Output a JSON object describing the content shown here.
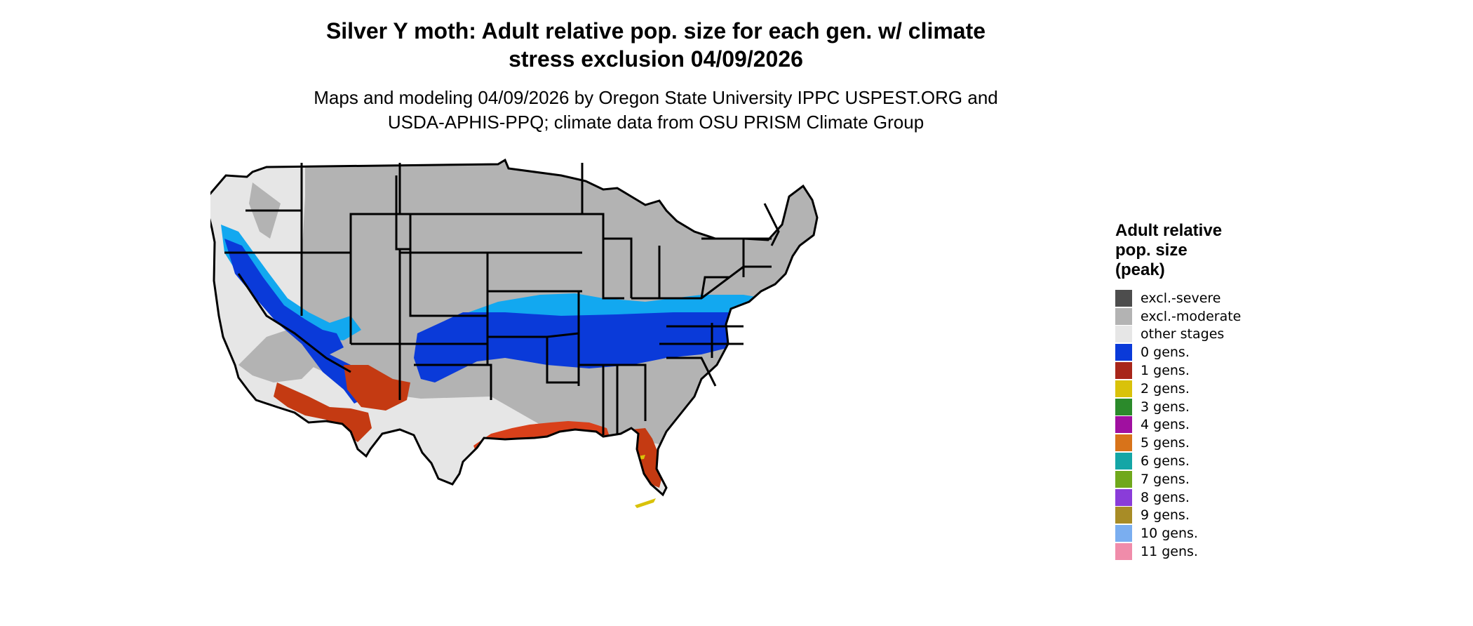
{
  "title_line1": "Silver Y moth: Adult relative pop. size for each gen. w/ climate",
  "title_line2": "stress exclusion 04/09/2026",
  "subtitle_line1": "Maps and modeling 04/09/2026 by Oregon State University IPPC USPEST.ORG and",
  "subtitle_line2": "USDA-APHIS-PPQ; climate data from OSU PRISM Climate Group",
  "legend": {
    "title_line1": "Adult relative",
    "title_line2": "pop. size",
    "title_line3": "(peak)",
    "items": [
      {
        "label": "excl.-severe",
        "color": "#4d4d4d"
      },
      {
        "label": "excl.-moderate",
        "color": "#b3b3b3"
      },
      {
        "label": "other stages",
        "color": "#e6e6e6"
      },
      {
        "label": "0 gens.",
        "color": "#0a3ad9"
      },
      {
        "label": "1 gens.",
        "color": "#a8261a"
      },
      {
        "label": "2 gens.",
        "color": "#d9c20a"
      },
      {
        "label": "3 gens.",
        "color": "#2b8a2b"
      },
      {
        "label": "4 gens.",
        "color": "#a010a0"
      },
      {
        "label": "5 gens.",
        "color": "#d8731a"
      },
      {
        "label": "6 gens.",
        "color": "#14a6a6"
      },
      {
        "label": "7 gens.",
        "color": "#70a81c"
      },
      {
        "label": "8 gens.",
        "color": "#8a3cd9"
      },
      {
        "label": "9 gens.",
        "color": "#a88c26"
      },
      {
        "label": "10 gens.",
        "color": "#7aaef0"
      },
      {
        "label": "11 gens.",
        "color": "#f08caa"
      }
    ]
  },
  "map_colors": {
    "other_stages": "#e6e6e6",
    "excl_moderate": "#b3b3b3",
    "excl_severe": "#4d4d4d",
    "zero_gens_dark": "#0a3ad9",
    "zero_gens_light": "#12a8f0",
    "one_gen": "#c43a12",
    "one_gen_bright": "#f0500f",
    "two_gens": "#d9c20a",
    "border": "#000000"
  }
}
